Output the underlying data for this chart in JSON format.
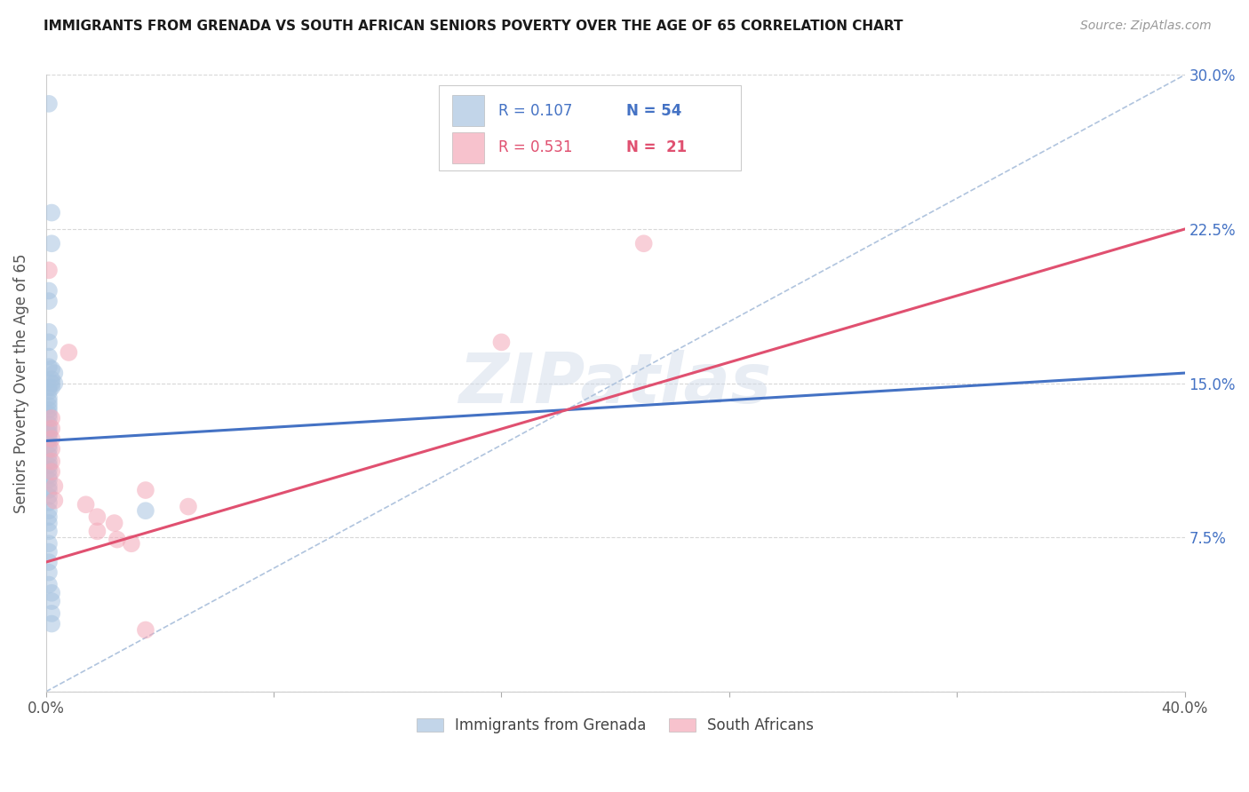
{
  "title": "IMMIGRANTS FROM GRENADA VS SOUTH AFRICAN SENIORS POVERTY OVER THE AGE OF 65 CORRELATION CHART",
  "source": "Source: ZipAtlas.com",
  "ylabel": "Seniors Poverty Over the Age of 65",
  "xlim": [
    0.0,
    0.4
  ],
  "ylim": [
    0.0,
    0.3
  ],
  "xticks": [
    0.0,
    0.08,
    0.16,
    0.24,
    0.32,
    0.4
  ],
  "xticklabels": [
    "0.0%",
    "",
    "",
    "",
    "",
    "40.0%"
  ],
  "yticks": [
    0.0,
    0.075,
    0.15,
    0.225,
    0.3
  ],
  "yticklabels_right": [
    "",
    "7.5%",
    "15.0%",
    "22.5%",
    "30.0%"
  ],
  "background_color": "#ffffff",
  "grid_color": "#d8d8d8",
  "watermark": "ZIPatlas",
  "blue_color": "#a8c4e0",
  "pink_color": "#f4a8b8",
  "blue_line_color": "#4472c4",
  "pink_line_color": "#e05070",
  "dashed_line_color": "#b0c4de",
  "label1": "Immigrants from Grenada",
  "label2": "South Africans",
  "blue_scatter": [
    [
      0.001,
      0.286
    ],
    [
      0.002,
      0.233
    ],
    [
      0.002,
      0.218
    ],
    [
      0.001,
      0.195
    ],
    [
      0.001,
      0.19
    ],
    [
      0.001,
      0.175
    ],
    [
      0.001,
      0.17
    ],
    [
      0.001,
      0.163
    ],
    [
      0.001,
      0.158
    ],
    [
      0.002,
      0.157
    ],
    [
      0.002,
      0.152
    ],
    [
      0.002,
      0.15
    ],
    [
      0.001,
      0.148
    ],
    [
      0.001,
      0.146
    ],
    [
      0.001,
      0.143
    ],
    [
      0.001,
      0.141
    ],
    [
      0.001,
      0.139
    ],
    [
      0.001,
      0.137
    ],
    [
      0.001,
      0.135
    ],
    [
      0.001,
      0.133
    ],
    [
      0.001,
      0.13
    ],
    [
      0.001,
      0.128
    ],
    [
      0.001,
      0.126
    ],
    [
      0.001,
      0.125
    ],
    [
      0.001,
      0.123
    ],
    [
      0.002,
      0.148
    ],
    [
      0.003,
      0.155
    ],
    [
      0.003,
      0.15
    ],
    [
      0.001,
      0.12
    ],
    [
      0.001,
      0.118
    ],
    [
      0.001,
      0.115
    ],
    [
      0.001,
      0.112
    ],
    [
      0.001,
      0.11
    ],
    [
      0.001,
      0.108
    ],
    [
      0.001,
      0.105
    ],
    [
      0.001,
      0.103
    ],
    [
      0.001,
      0.1
    ],
    [
      0.001,
      0.098
    ],
    [
      0.001,
      0.095
    ],
    [
      0.001,
      0.092
    ],
    [
      0.001,
      0.088
    ],
    [
      0.001,
      0.085
    ],
    [
      0.001,
      0.082
    ],
    [
      0.001,
      0.078
    ],
    [
      0.001,
      0.072
    ],
    [
      0.001,
      0.068
    ],
    [
      0.001,
      0.063
    ],
    [
      0.001,
      0.058
    ],
    [
      0.001,
      0.052
    ],
    [
      0.002,
      0.048
    ],
    [
      0.002,
      0.044
    ],
    [
      0.035,
      0.088
    ],
    [
      0.002,
      0.038
    ],
    [
      0.002,
      0.033
    ]
  ],
  "pink_scatter": [
    [
      0.001,
      0.205
    ],
    [
      0.002,
      0.133
    ],
    [
      0.002,
      0.128
    ],
    [
      0.002,
      0.123
    ],
    [
      0.002,
      0.118
    ],
    [
      0.002,
      0.112
    ],
    [
      0.002,
      0.107
    ],
    [
      0.003,
      0.1
    ],
    [
      0.003,
      0.093
    ],
    [
      0.008,
      0.165
    ],
    [
      0.014,
      0.091
    ],
    [
      0.018,
      0.085
    ],
    [
      0.024,
      0.082
    ],
    [
      0.018,
      0.078
    ],
    [
      0.025,
      0.074
    ],
    [
      0.03,
      0.072
    ],
    [
      0.035,
      0.098
    ],
    [
      0.16,
      0.17
    ],
    [
      0.035,
      0.03
    ],
    [
      0.05,
      0.09
    ],
    [
      0.21,
      0.218
    ]
  ],
  "blue_trendline_x": [
    0.0,
    0.4
  ],
  "blue_trendline_y": [
    0.122,
    0.155
  ],
  "pink_trendline_x": [
    0.0,
    0.4
  ],
  "pink_trendline_y": [
    0.063,
    0.225
  ],
  "dashed_line_x": [
    0.0,
    0.4
  ],
  "dashed_line_y": [
    0.0,
    0.3
  ]
}
